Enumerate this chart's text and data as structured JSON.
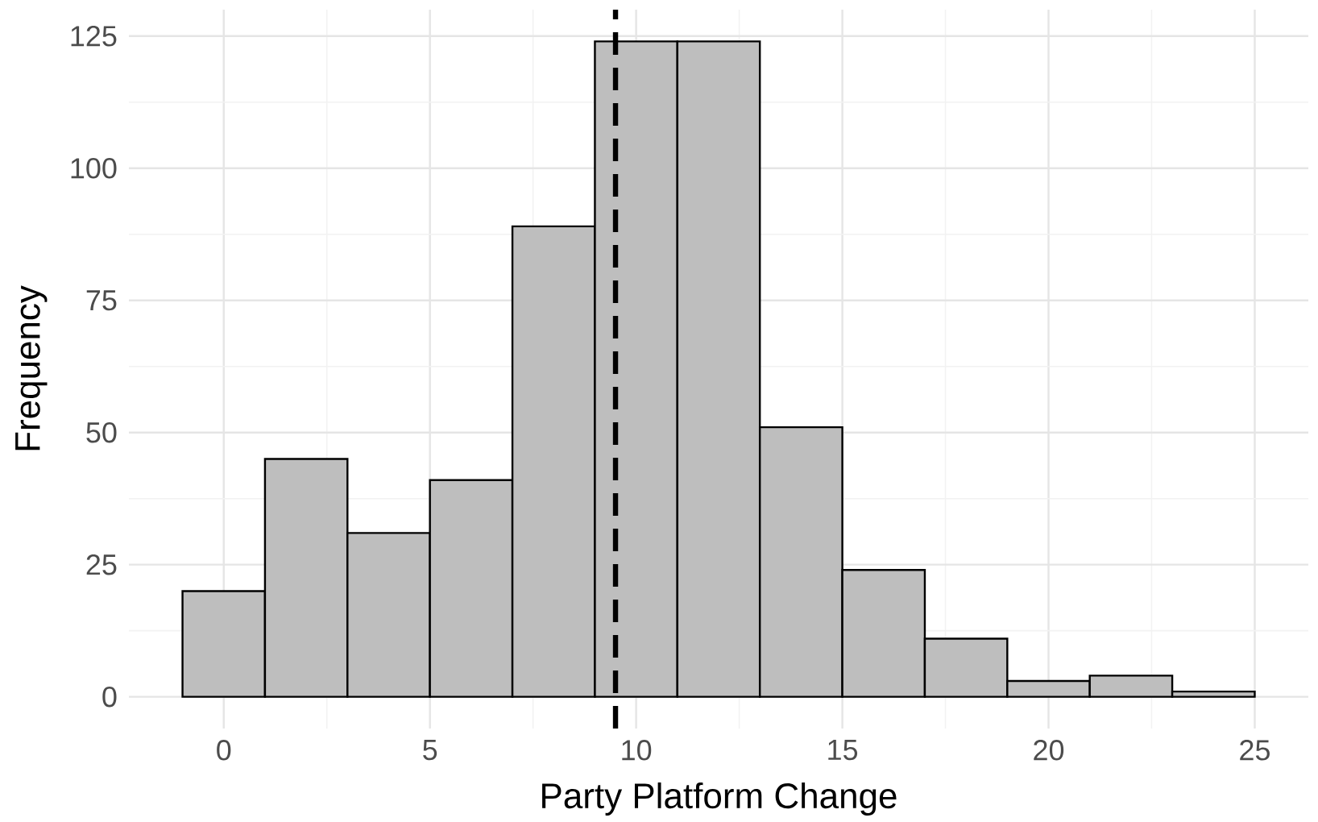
{
  "chart_data": {
    "type": "histogram",
    "xlabel": "Party Platform Change",
    "ylabel": "Frequency",
    "bins": [
      -1,
      1,
      3,
      5,
      7,
      9,
      11,
      13,
      15,
      17,
      19,
      21,
      23,
      25
    ],
    "values": [
      20,
      45,
      31,
      41,
      89,
      124,
      124,
      51,
      24,
      11,
      3,
      4,
      1
    ],
    "color": "#bebebe",
    "xlim": [
      -2.3,
      26.3
    ],
    "ylim": [
      -6,
      130
    ],
    "xticks": [
      0,
      5,
      10,
      15,
      20,
      25
    ],
    "yticks": [
      0,
      25,
      50,
      75,
      100,
      125
    ],
    "grid": true,
    "ref_lines": [
      {
        "axis": "x",
        "value": 9.5,
        "color": "#000000",
        "line_style": "dashed"
      }
    ]
  }
}
